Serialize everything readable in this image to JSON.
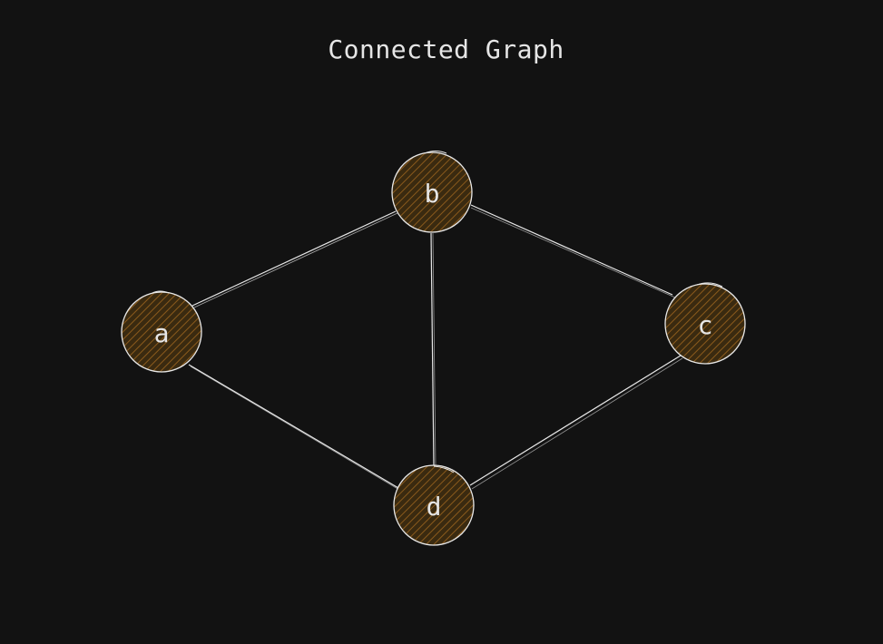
{
  "title": "Connected Graph",
  "colors": {
    "background": "#121212",
    "stroke": "#e8e8e8",
    "node_fill": "#3a2a10",
    "hatch": "#8a5a1c",
    "text": "#e6e6e6"
  },
  "nodes": [
    {
      "id": "a",
      "label": "a"
    },
    {
      "id": "b",
      "label": "b"
    },
    {
      "id": "c",
      "label": "c"
    },
    {
      "id": "d",
      "label": "d"
    }
  ],
  "edges": [
    {
      "from": "a",
      "to": "b"
    },
    {
      "from": "a",
      "to": "d"
    },
    {
      "from": "b",
      "to": "c"
    },
    {
      "from": "b",
      "to": "d"
    },
    {
      "from": "c",
      "to": "d"
    }
  ]
}
